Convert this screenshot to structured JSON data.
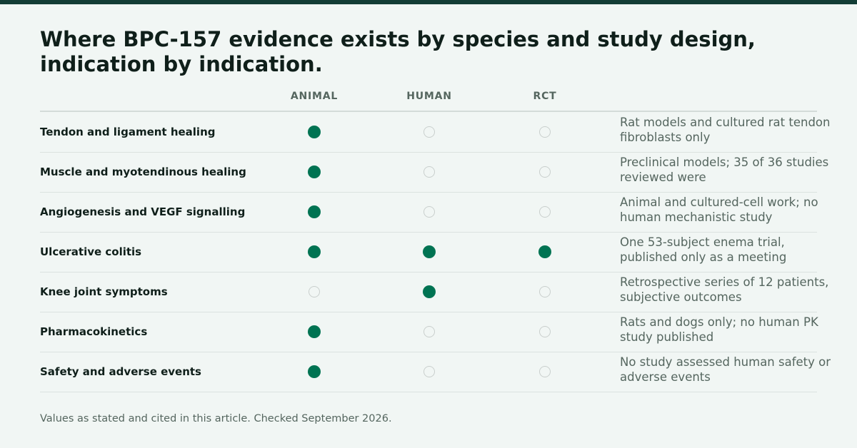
{
  "title": "Where BPC-157 evidence exists by species and study design, indication by indication.",
  "columns": [
    "ANIMAL",
    "HUMAN",
    "RCT"
  ],
  "rows": [
    {
      "label": "Tendon and ligament healing",
      "animal": true,
      "human": false,
      "rct": false,
      "note": "Rat models and cultured rat tendon fibroblasts only"
    },
    {
      "label": "Muscle and myotendinous healing",
      "animal": true,
      "human": false,
      "rct": false,
      "note": "Preclinical models; 35 of 36 studies reviewed were"
    },
    {
      "label": "Angiogenesis and VEGF signalling",
      "animal": true,
      "human": false,
      "rct": false,
      "note": "Animal and cultured-cell work; no human mechanistic study"
    },
    {
      "label": "Ulcerative colitis",
      "animal": true,
      "human": true,
      "rct": true,
      "note": "One 53-subject enema trial, published only as a meeting"
    },
    {
      "label": "Knee joint symptoms",
      "animal": false,
      "human": true,
      "rct": false,
      "note": "Retrospective series of 12 patients, subjective outcomes"
    },
    {
      "label": "Pharmacokinetics",
      "animal": true,
      "human": false,
      "rct": false,
      "note": "Rats and dogs only; no human PK study published"
    },
    {
      "label": "Safety and adverse events",
      "animal": true,
      "human": false,
      "rct": false,
      "note": "No study assessed human safety or adverse events"
    }
  ],
  "footer": "Values as stated and cited in this article. Checked September 2026.",
  "colors": {
    "filled": "#007352",
    "empty_border": "#c9cfcd",
    "accent_bar": "#133d35"
  }
}
